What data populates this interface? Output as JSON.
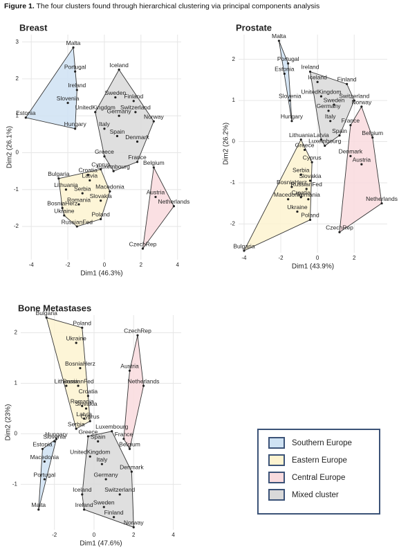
{
  "caption": {
    "label": "Figure 1.",
    "text": "The four clusters found through hierarchical clustering via principal components analysis"
  },
  "chart_data": [
    {
      "type": "scatter",
      "title": "Breast",
      "x_label": "Dim1 (46.3%)",
      "y_label": "Dim2 (26.1%)",
      "xlim": [
        -4.5,
        4.2
      ],
      "ylim": [
        -2.9,
        3.2
      ],
      "xticks": [
        -4,
        -2,
        0,
        2,
        4
      ],
      "yticks": [
        -2,
        -1,
        0,
        1,
        2,
        3
      ],
      "grid": true,
      "series": [
        {
          "color": "#cfe2f3",
          "labels": [
            "Malta",
            "Portugal",
            "Ireland",
            "Slovenia",
            "Estonia",
            "Hungary"
          ],
          "x": [
            -1.7,
            -1.6,
            -1.5,
            -2.0,
            -4.3,
            -1.6
          ],
          "y": [
            2.85,
            2.2,
            1.7,
            1.35,
            0.95,
            0.65
          ]
        },
        {
          "color": "#d9d9d9",
          "labels": [
            "Iceland",
            "Sweden",
            "Finland",
            "Switzerland",
            "UnitedKingdom",
            "Germany",
            "Norway",
            "Italy",
            "Spain",
            "Denmark",
            "Greece",
            "France",
            "Luxembourg"
          ],
          "x": [
            0.8,
            0.6,
            1.6,
            1.7,
            -0.5,
            0.8,
            2.7,
            0.0,
            0.7,
            1.8,
            0.0,
            1.8,
            0.5
          ],
          "y": [
            2.25,
            1.5,
            1.4,
            1.1,
            1.1,
            1.0,
            0.85,
            0.65,
            0.45,
            0.3,
            -0.1,
            -0.25,
            -0.5
          ]
        },
        {
          "color": "#fdf3d0",
          "labels": [
            "Cyprus",
            "Croatia",
            "Latvia",
            "Bulgaria",
            "Lithuania",
            "Serbia",
            "Macedonia",
            "Slovakia",
            "BosniaHerz",
            "Romania",
            "Ukraine",
            "Poland",
            "RussianFed"
          ],
          "x": [
            -0.2,
            -0.9,
            -0.8,
            -2.5,
            -2.1,
            -1.2,
            0.3,
            -0.2,
            -2.3,
            -1.4,
            -2.2,
            -0.2,
            -1.5
          ],
          "y": [
            -0.45,
            -0.6,
            -0.75,
            -0.7,
            -1.0,
            -1.1,
            -1.05,
            -1.3,
            -1.5,
            -1.4,
            -1.7,
            -1.8,
            -2.0
          ]
        },
        {
          "color": "#f9dbde",
          "labels": [
            "Belgium",
            "Austria",
            "Netherlands",
            "CzechRep"
          ],
          "x": [
            2.7,
            2.8,
            3.8,
            2.1
          ],
          "y": [
            -0.4,
            -1.2,
            -1.45,
            -2.6
          ]
        }
      ]
    },
    {
      "type": "scatter",
      "title": "Prostate",
      "x_label": "Dim1 (43.9%)",
      "y_label": "Dim2 (26.2%)",
      "xlim": [
        -4.3,
        3.8
      ],
      "ylim": [
        -2.7,
        2.6
      ],
      "xticks": [
        -4,
        -2,
        0,
        2
      ],
      "yticks": [
        -2,
        -1,
        0,
        1,
        2
      ],
      "grid": true,
      "series": [
        {
          "color": "#cfe2f3",
          "labels": [
            "Malta",
            "Portugal",
            "Estonia",
            "Slovenia",
            "Hungary"
          ],
          "x": [
            -2.1,
            -1.6,
            -1.8,
            -1.5,
            -1.4
          ],
          "y": [
            2.45,
            1.9,
            1.65,
            1.0,
            0.5
          ]
        },
        {
          "color": "#d9d9d9",
          "labels": [
            "Ireland",
            "Iceland",
            "Finland",
            "UnitedKingdom",
            "Switzerland",
            "Sweden",
            "Germany",
            "Italy",
            "Spain",
            "Latvia",
            "Luxembourg"
          ],
          "x": [
            -0.4,
            0.0,
            1.6,
            0.2,
            2.0,
            0.9,
            0.6,
            0.7,
            1.2,
            0.2,
            0.4
          ],
          "y": [
            1.7,
            1.45,
            1.4,
            1.1,
            1.0,
            0.9,
            0.75,
            0.5,
            0.15,
            0.05,
            -0.1
          ]
        },
        {
          "color": "#fdf3d0",
          "labels": [
            "Lithuania",
            "Greece",
            "Cyprus",
            "Serbia",
            "Slovakia",
            "BosniaHerz",
            "RussianFed",
            "Croatia",
            "Romania",
            "Macedonia",
            "Ukraine",
            "Poland",
            "Bulgaria"
          ],
          "x": [
            -0.9,
            -0.7,
            -0.3,
            -0.9,
            -0.4,
            -1.4,
            -0.6,
            -0.9,
            -0.5,
            -1.6,
            -1.1,
            -0.4,
            -4.0
          ],
          "y": [
            0.05,
            -0.2,
            -0.5,
            -0.8,
            -0.95,
            -1.1,
            -1.15,
            -1.35,
            -1.4,
            -1.4,
            -1.7,
            -1.9,
            -2.65
          ]
        },
        {
          "color": "#f9dbde",
          "labels": [
            "Norway",
            "Belgium",
            "France",
            "Denmark",
            "Austria",
            "Netherlands",
            "CzechRep"
          ],
          "x": [
            2.4,
            3.0,
            1.8,
            1.8,
            2.4,
            3.5,
            1.2
          ],
          "y": [
            0.85,
            0.1,
            0.4,
            -0.35,
            -0.55,
            -1.5,
            -2.2
          ]
        }
      ]
    },
    {
      "type": "scatter",
      "title": "Bone Metastases",
      "x_label": "Dim1 (47.6%)",
      "y_label": "Dim2 (23%)",
      "xlim": [
        -3.7,
        4.4
      ],
      "ylim": [
        -1.9,
        2.35
      ],
      "xticks": [
        -2,
        0,
        2,
        4
      ],
      "yticks": [
        -1,
        0,
        1,
        2
      ],
      "grid": true,
      "series": [
        {
          "color": "#fdf3d0",
          "labels": [
            "Bulgaria",
            "Poland",
            "Ukraine",
            "BosniaHerz",
            "RussianFed",
            "Lithuania",
            "Croatia",
            "Romania",
            "Slovakia",
            "Latvia",
            "Cyprus",
            "Serbia"
          ],
          "x": [
            -2.4,
            -0.6,
            -0.9,
            -0.7,
            -0.8,
            -1.4,
            -0.3,
            -0.6,
            -0.4,
            -0.5,
            -0.2,
            -0.9
          ],
          "y": [
            2.3,
            2.1,
            1.8,
            1.3,
            0.95,
            0.95,
            0.75,
            0.55,
            0.5,
            0.3,
            0.25,
            0.1
          ]
        },
        {
          "color": "#d9d9d9",
          "labels": [
            "Luxembourg",
            "Greece",
            "Spain",
            "UnitedKingdom",
            "Italy",
            "Germany",
            "Denmark",
            "Switzerland",
            "Iceland",
            "Sweden",
            "Ireland",
            "Finland",
            "Norway"
          ],
          "x": [
            0.9,
            -0.3,
            0.2,
            -0.2,
            0.4,
            0.6,
            1.9,
            1.3,
            -0.6,
            0.5,
            -0.5,
            1.0,
            2.0
          ],
          "y": [
            0.05,
            -0.05,
            -0.15,
            -0.45,
            -0.6,
            -0.9,
            -0.75,
            -1.2,
            -1.2,
            -1.45,
            -1.5,
            -1.65,
            -1.85
          ]
        },
        {
          "color": "#cfe2f3",
          "labels": [
            "Hungary",
            "Slovenia",
            "Estonia",
            "Macedonia",
            "Portugal",
            "Malta"
          ],
          "x": [
            -1.9,
            -2.0,
            -2.6,
            -2.5,
            -2.5,
            -2.8
          ],
          "y": [
            -0.1,
            -0.15,
            -0.3,
            -0.55,
            -0.9,
            -1.5
          ]
        },
        {
          "color": "#f9dbde",
          "labels": [
            "CzechRep",
            "Austria",
            "Netherlands",
            "France",
            "Belgium"
          ],
          "x": [
            2.2,
            1.8,
            2.5,
            1.5,
            1.8
          ],
          "y": [
            1.95,
            1.25,
            0.95,
            -0.1,
            -0.3
          ]
        }
      ]
    }
  ],
  "legend": {
    "items": [
      {
        "name": "Southern Europe",
        "color": "#cfe2f3"
      },
      {
        "name": "Eastern Europe",
        "color": "#fdf3d0"
      },
      {
        "name": "Central Europe",
        "color": "#f9dbde"
      },
      {
        "name": "Mixed cluster",
        "color": "#d9d9d9"
      }
    ]
  }
}
